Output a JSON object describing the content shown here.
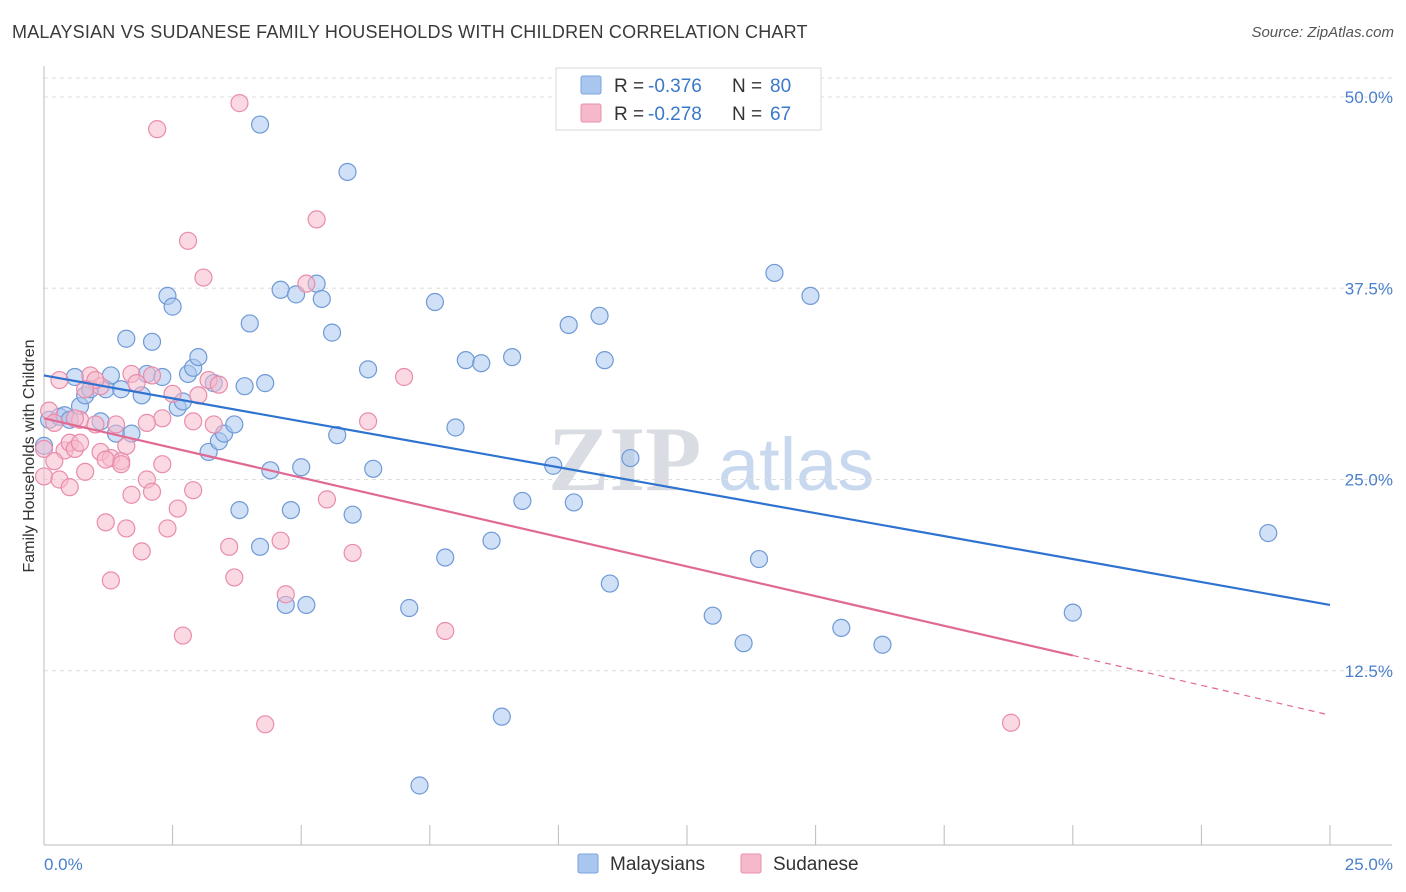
{
  "title": "MALAYSIAN VS SUDANESE FAMILY HOUSEHOLDS WITH CHILDREN CORRELATION CHART",
  "source": "Source: ZipAtlas.com",
  "watermark": {
    "zip": "ZIP",
    "atlas": "atlas"
  },
  "legend": {
    "rows": [
      {
        "r_label": "R =",
        "r_value": "-0.376",
        "n_label": "N =",
        "n_value": "80",
        "color": "#a9c6ee",
        "stroke": "#7aa3dd"
      },
      {
        "r_label": "R =",
        "r_value": "-0.278",
        "n_label": "N =",
        "n_value": "67",
        "color": "#f6b9cc",
        "stroke": "#ea8fab"
      }
    ]
  },
  "bottom_legend": [
    "Malaysians",
    "Sudanese"
  ],
  "chart_data": {
    "type": "scatter",
    "title": "MALAYSIAN VS SUDANESE FAMILY HOUSEHOLDS WITH CHILDREN CORRELATION CHART",
    "xlabel": "",
    "ylabel": "Family Households with Children",
    "xlim": [
      0,
      25
    ],
    "ylim": [
      0,
      50
    ],
    "x_tick_labels": [
      "0.0%",
      "25.0%"
    ],
    "y_ticks": [
      12.5,
      25.0,
      37.5,
      50.0
    ],
    "y_tick_labels": [
      "12.5%",
      "25.0%",
      "37.5%",
      "50.0%"
    ],
    "grid": true,
    "legend_position": "top-center",
    "series": [
      {
        "name": "Malaysians",
        "color": "#a9c6ee",
        "stroke": "#6f9ad6",
        "trend": {
          "x": [
            0,
            25
          ],
          "y": [
            31.8,
            16.8
          ],
          "color": "#2f73d0"
        },
        "points": [
          [
            0.0,
            27.2
          ],
          [
            0.1,
            28.9
          ],
          [
            0.3,
            29.1
          ],
          [
            0.4,
            29.2
          ],
          [
            0.5,
            28.9
          ],
          [
            0.6,
            31.7
          ],
          [
            0.7,
            29.8
          ],
          [
            0.8,
            30.5
          ],
          [
            0.9,
            30.9
          ],
          [
            1.1,
            28.8
          ],
          [
            1.2,
            30.9
          ],
          [
            1.3,
            31.8
          ],
          [
            1.4,
            28.0
          ],
          [
            1.5,
            30.9
          ],
          [
            1.6,
            34.2
          ],
          [
            1.7,
            28.0
          ],
          [
            1.9,
            30.5
          ],
          [
            2.0,
            31.9
          ],
          [
            2.1,
            34.0
          ],
          [
            2.3,
            31.7
          ],
          [
            2.4,
            37.0
          ],
          [
            2.5,
            36.3
          ],
          [
            2.6,
            29.7
          ],
          [
            2.7,
            30.1
          ],
          [
            2.8,
            31.9
          ],
          [
            2.9,
            32.3
          ],
          [
            3.0,
            33.0
          ],
          [
            3.2,
            26.8
          ],
          [
            3.3,
            31.3
          ],
          [
            3.4,
            27.5
          ],
          [
            3.5,
            28.0
          ],
          [
            3.7,
            28.6
          ],
          [
            3.8,
            23.0
          ],
          [
            3.9,
            31.1
          ],
          [
            4.0,
            35.2
          ],
          [
            4.2,
            20.6
          ],
          [
            4.3,
            31.3
          ],
          [
            4.4,
            25.6
          ],
          [
            4.6,
            37.4
          ],
          [
            4.7,
            16.8
          ],
          [
            4.8,
            23.0
          ],
          [
            4.9,
            37.1
          ],
          [
            5.0,
            25.8
          ],
          [
            5.1,
            16.8
          ],
          [
            5.3,
            37.8
          ],
          [
            5.4,
            36.8
          ],
          [
            5.6,
            34.6
          ],
          [
            5.7,
            27.9
          ],
          [
            5.9,
            45.1
          ],
          [
            6.0,
            22.7
          ],
          [
            6.3,
            32.2
          ],
          [
            6.4,
            25.7
          ],
          [
            7.1,
            16.6
          ],
          [
            7.3,
            5.0
          ],
          [
            7.6,
            36.6
          ],
          [
            7.8,
            19.9
          ],
          [
            8.0,
            28.4
          ],
          [
            8.2,
            32.8
          ],
          [
            8.5,
            32.6
          ],
          [
            8.7,
            21.0
          ],
          [
            8.9,
            9.5
          ],
          [
            9.1,
            33.0
          ],
          [
            9.3,
            23.6
          ],
          [
            9.9,
            25.9
          ],
          [
            10.2,
            35.1
          ],
          [
            10.3,
            23.5
          ],
          [
            10.8,
            35.7
          ],
          [
            10.9,
            32.8
          ],
          [
            11.0,
            18.2
          ],
          [
            11.4,
            26.4
          ],
          [
            13.0,
            16.1
          ],
          [
            13.6,
            14.3
          ],
          [
            13.9,
            19.8
          ],
          [
            14.2,
            38.5
          ],
          [
            14.9,
            37.0
          ],
          [
            15.5,
            15.3
          ],
          [
            16.3,
            14.2
          ],
          [
            20.0,
            16.3
          ],
          [
            23.8,
            21.5
          ],
          [
            4.2,
            48.2
          ]
        ]
      },
      {
        "name": "Sudanese",
        "color": "#f6b9cc",
        "stroke": "#e98cab",
        "trend": {
          "x": [
            0,
            20
          ],
          "y": [
            29.0,
            13.5
          ],
          "dash_x": [
            20,
            25
          ],
          "dash_y": [
            13.5,
            9.6
          ],
          "color": "#e06a93"
        },
        "points": [
          [
            0.0,
            25.2
          ],
          [
            0.0,
            27.0
          ],
          [
            0.1,
            29.5
          ],
          [
            0.2,
            28.7
          ],
          [
            0.3,
            25.0
          ],
          [
            0.4,
            26.9
          ],
          [
            0.5,
            24.5
          ],
          [
            0.5,
            27.4
          ],
          [
            0.6,
            27.0
          ],
          [
            0.7,
            27.4
          ],
          [
            0.7,
            28.9
          ],
          [
            0.8,
            25.5
          ],
          [
            0.9,
            31.8
          ],
          [
            1.0,
            28.6
          ],
          [
            1.1,
            26.8
          ],
          [
            1.1,
            31.1
          ],
          [
            1.2,
            22.2
          ],
          [
            1.3,
            26.4
          ],
          [
            1.3,
            18.4
          ],
          [
            1.4,
            28.6
          ],
          [
            1.5,
            26.2
          ],
          [
            1.6,
            21.8
          ],
          [
            1.6,
            27.2
          ],
          [
            1.7,
            31.9
          ],
          [
            1.7,
            24.0
          ],
          [
            1.8,
            31.3
          ],
          [
            1.9,
            20.3
          ],
          [
            2.0,
            25.0
          ],
          [
            2.1,
            31.8
          ],
          [
            2.1,
            24.2
          ],
          [
            2.2,
            47.9
          ],
          [
            2.3,
            29.0
          ],
          [
            2.3,
            26.0
          ],
          [
            2.4,
            21.8
          ],
          [
            2.5,
            30.6
          ],
          [
            2.6,
            23.1
          ],
          [
            2.7,
            14.8
          ],
          [
            2.8,
            40.6
          ],
          [
            2.9,
            24.3
          ],
          [
            2.9,
            28.8
          ],
          [
            3.0,
            30.5
          ],
          [
            3.1,
            38.2
          ],
          [
            3.2,
            31.5
          ],
          [
            3.3,
            28.6
          ],
          [
            3.6,
            20.6
          ],
          [
            3.7,
            18.6
          ],
          [
            3.8,
            49.6
          ],
          [
            4.3,
            9.0
          ],
          [
            4.6,
            21.0
          ],
          [
            4.7,
            17.5
          ],
          [
            5.1,
            37.8
          ],
          [
            5.3,
            42.0
          ],
          [
            5.5,
            23.7
          ],
          [
            6.0,
            20.2
          ],
          [
            6.3,
            28.8
          ],
          [
            7.0,
            31.7
          ],
          [
            7.8,
            15.1
          ],
          [
            18.8,
            9.1
          ],
          [
            0.2,
            26.2
          ],
          [
            0.6,
            29.0
          ],
          [
            1.0,
            31.5
          ],
          [
            1.5,
            26.0
          ],
          [
            2.0,
            28.7
          ],
          [
            3.4,
            31.2
          ],
          [
            0.3,
            31.5
          ],
          [
            0.8,
            30.9
          ],
          [
            1.2,
            26.3
          ]
        ]
      }
    ]
  }
}
